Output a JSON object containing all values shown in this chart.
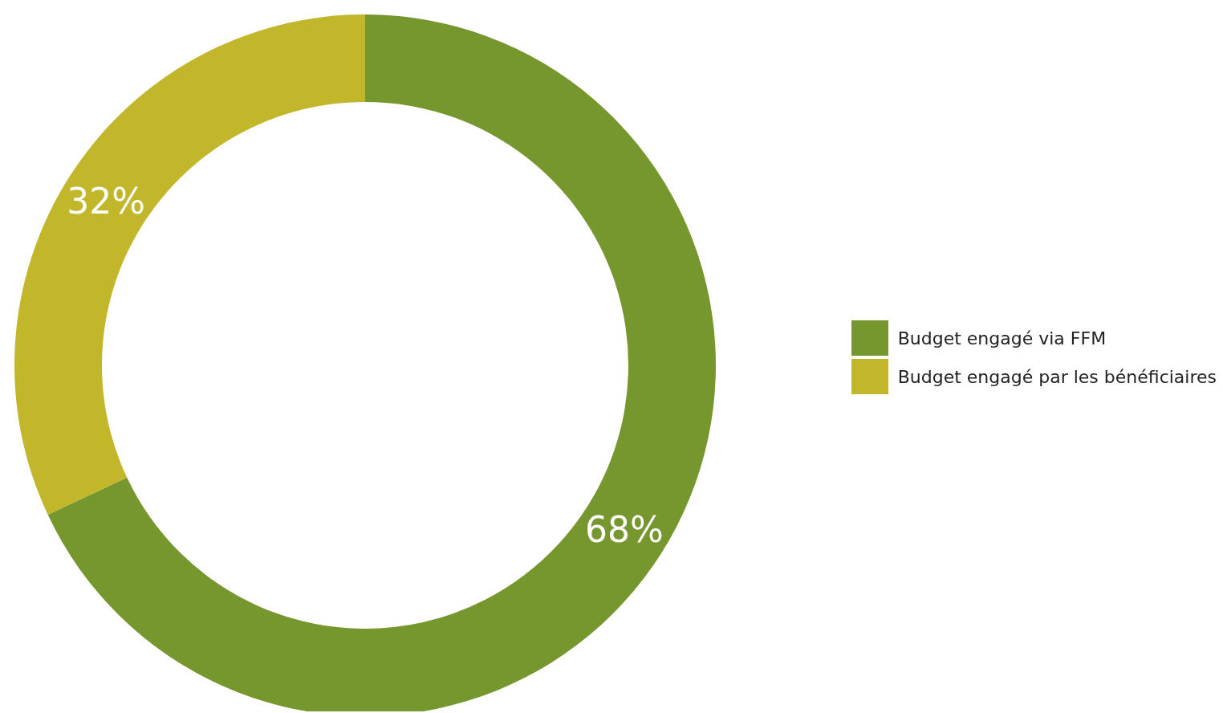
{
  "chart_data": {
    "type": "donut",
    "categories": [
      "Budget engagé via FFM",
      "Budget engagé par les bénéficiaires"
    ],
    "values": [
      68,
      32
    ],
    "colors": [
      "#76962e",
      "#c2b62a"
    ],
    "value_labels": [
      "68%",
      "32%"
    ],
    "legend": "right"
  }
}
